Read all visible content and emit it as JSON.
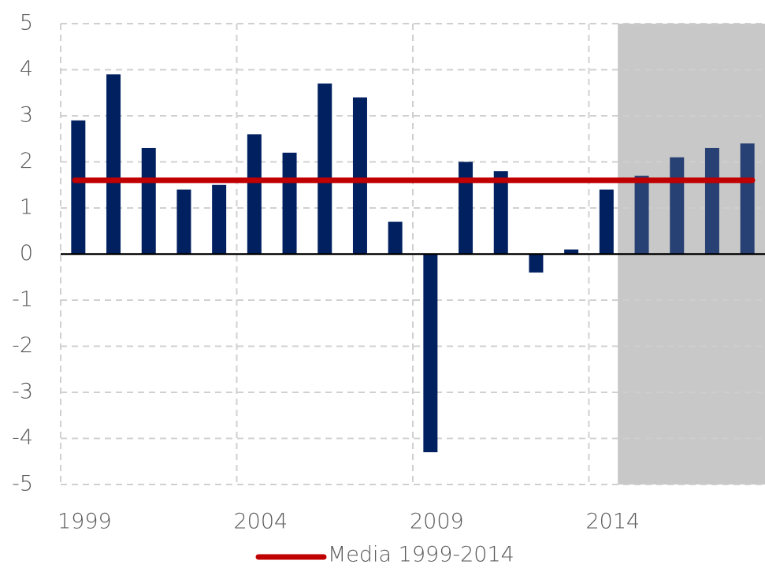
{
  "chart_data": {
    "type": "bar",
    "categories": [
      "1999",
      null,
      null,
      null,
      null,
      "2004",
      null,
      null,
      null,
      null,
      "2009",
      null,
      null,
      null,
      null,
      "2014",
      null,
      null,
      null,
      null
    ],
    "values": [
      2.9,
      3.9,
      2.3,
      1.4,
      1.5,
      2.6,
      2.2,
      3.7,
      3.4,
      0.7,
      -4.3,
      2.0,
      1.8,
      -0.4,
      0.1,
      1.4,
      1.7,
      2.1,
      2.3,
      2.4
    ],
    "color": "#002060",
    "reference_line": {
      "name": "Media 1999-2014",
      "value": 1.6,
      "color": "#c00000"
    },
    "ylim": [
      -5,
      5
    ],
    "yticks": [
      -5,
      -4,
      -3,
      -2,
      -1,
      0,
      1,
      2,
      3,
      4,
      5
    ],
    "grid": true
  }
}
